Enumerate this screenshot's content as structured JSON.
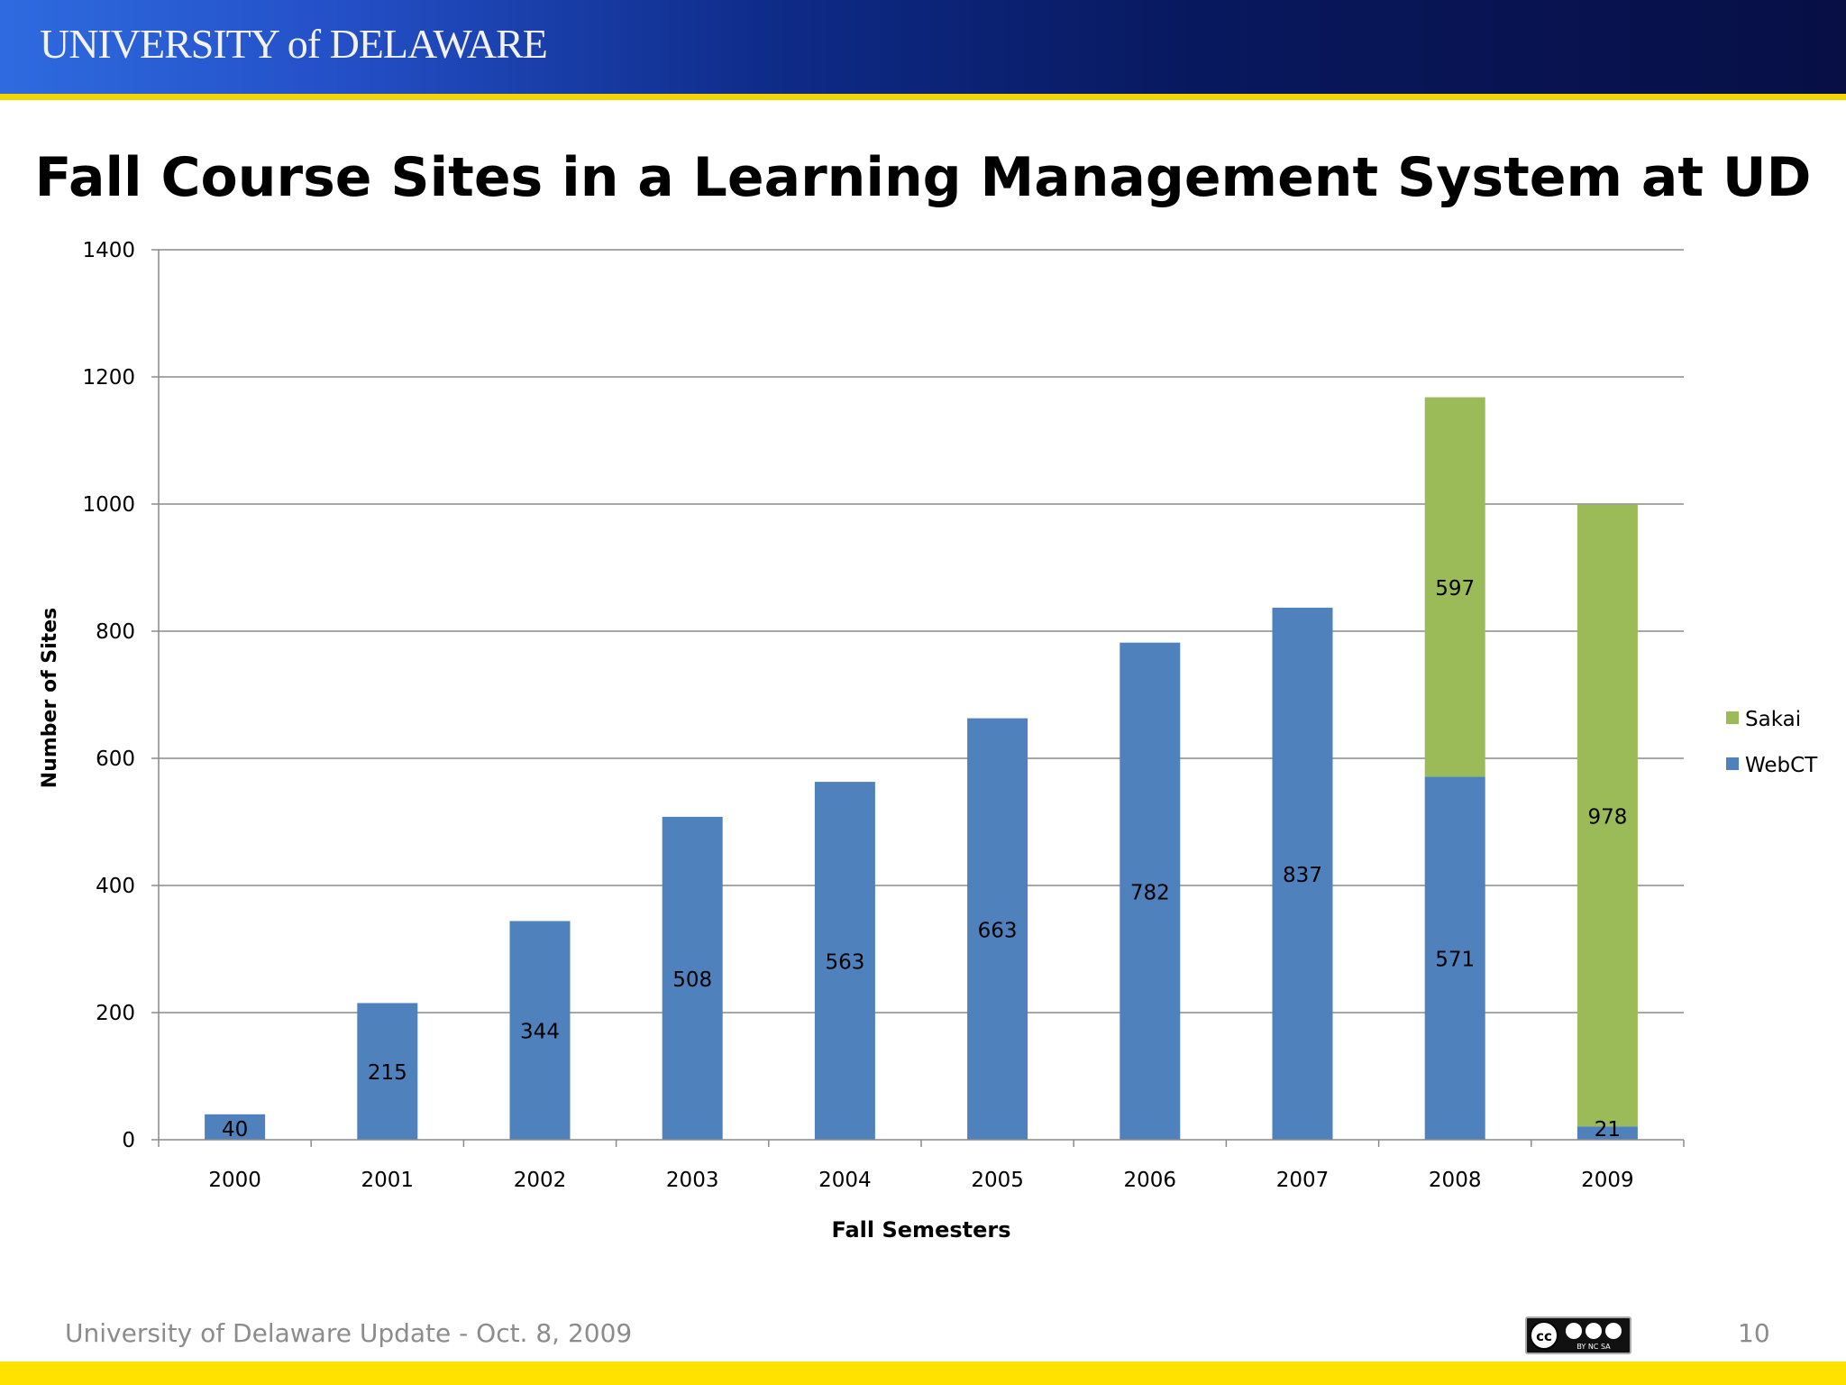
{
  "header": {
    "logo_text": "UNIVERSITY of DELAWARE",
    "colors": {
      "bar_start": "#2f6be0",
      "bar_end": "#070f45",
      "rule": "#f3d400"
    }
  },
  "chart_data": {
    "type": "bar",
    "stacked": true,
    "title": "Fall Course Sites in a Learning Management System at UD",
    "xlabel": "Fall Semesters",
    "ylabel": "Number of Sites",
    "ylim": [
      0,
      1400
    ],
    "yticks": [
      0,
      200,
      400,
      600,
      800,
      1000,
      1200,
      1400
    ],
    "categories": [
      "2000",
      "2001",
      "2002",
      "2003",
      "2004",
      "2005",
      "2006",
      "2007",
      "2008",
      "2009"
    ],
    "series": [
      {
        "name": "WebCT",
        "color": "#4f81bd",
        "values": [
          40,
          215,
          344,
          508,
          563,
          663,
          782,
          837,
          571,
          21
        ]
      },
      {
        "name": "Sakai",
        "color": "#9bbb59",
        "values": [
          null,
          null,
          null,
          null,
          null,
          null,
          null,
          null,
          597,
          978
        ]
      }
    ],
    "legend": {
      "placement": "right",
      "order": [
        "Sakai",
        "WebCT"
      ]
    },
    "grid": true
  },
  "footer": {
    "text": "University of Delaware Update - Oct. 8, 2009",
    "page_number": "10",
    "license_badge": "cc-by-nc-sa-icon",
    "license_text": "BY  NC  SA",
    "bar_color": "#ffe200"
  }
}
